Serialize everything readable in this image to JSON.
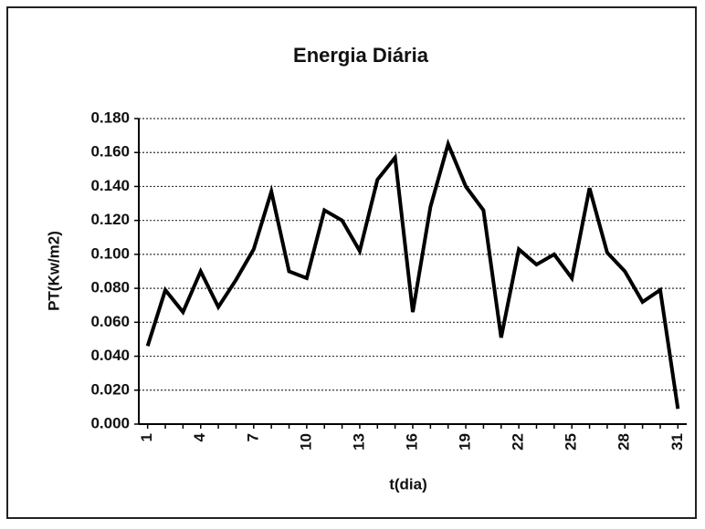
{
  "chart_data": {
    "type": "line",
    "title": "Energia Diária",
    "x_label": "t(dia)",
    "y_label": "PT(Kw/m2)",
    "categories": [
      "1",
      null,
      null,
      "4",
      null,
      null,
      "7",
      null,
      null,
      "10",
      null,
      null,
      "13",
      null,
      null,
      "16",
      null,
      null,
      "19",
      null,
      null,
      "22",
      null,
      null,
      "25",
      null,
      null,
      "28",
      null,
      null,
      "31"
    ],
    "values": [
      0.046,
      0.079,
      0.066,
      0.09,
      0.069,
      0.085,
      0.103,
      0.137,
      0.09,
      0.086,
      0.126,
      0.12,
      0.102,
      0.144,
      0.157,
      0.066,
      0.128,
      0.165,
      0.14,
      0.126,
      0.051,
      0.103,
      0.094,
      0.1,
      0.086,
      0.139,
      0.101,
      0.09,
      0.072,
      0.079,
      0.009
    ],
    "color": "#000000",
    "ylim": [
      0,
      0.18
    ],
    "yticks": [
      {
        "value": 0,
        "label": "0.000"
      },
      {
        "value": 0.02,
        "label": "0.020"
      },
      {
        "value": 0.04,
        "label": "0.040"
      },
      {
        "value": 0.06,
        "label": "0.060"
      },
      {
        "value": 0.08,
        "label": "0.080"
      },
      {
        "value": 0.1,
        "label": "0.100"
      },
      {
        "value": 0.12,
        "label": "0.120"
      },
      {
        "value": 0.14,
        "label": "0.140"
      },
      {
        "value": 0.16,
        "label": "0.160"
      },
      {
        "value": 0.18,
        "label": "0.180"
      }
    ],
    "grid": true
  }
}
